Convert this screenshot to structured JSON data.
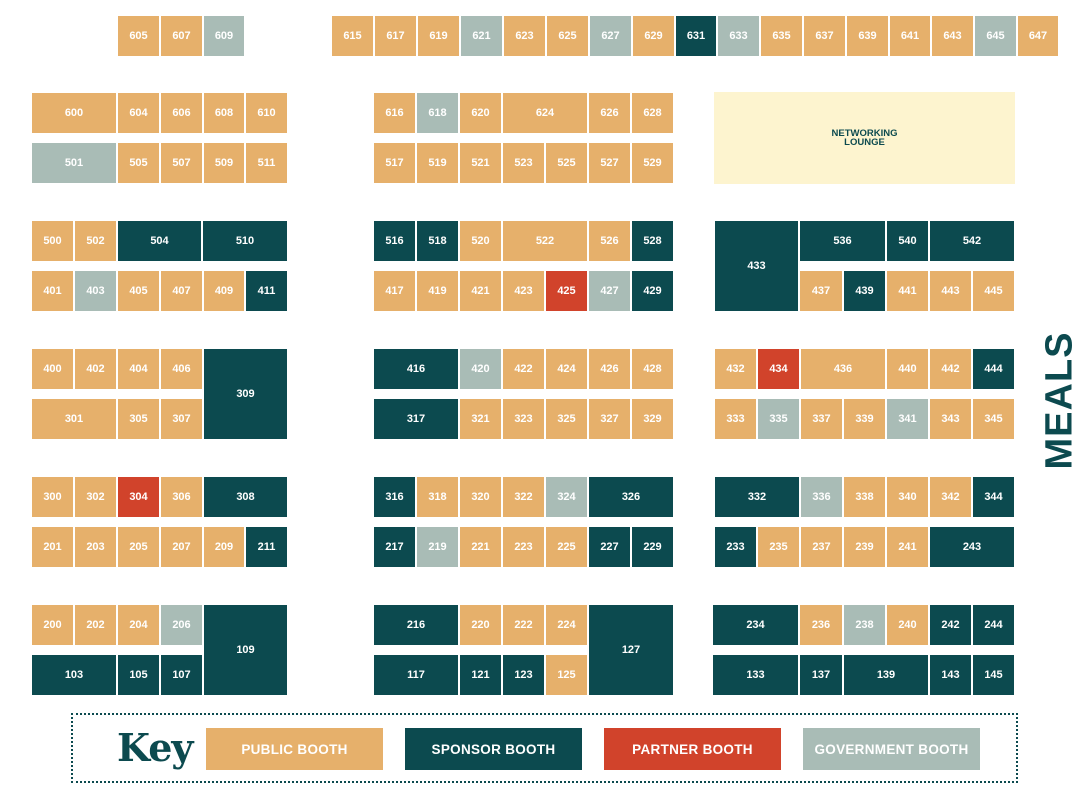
{
  "booth_types": {
    "public": {
      "label": "PUBLIC BOOTH",
      "color": "#e6b06b"
    },
    "sponsor": {
      "label": "SPONSOR BOOTH",
      "color": "#0c4a4f"
    },
    "partner": {
      "label": "PARTNER BOOTH",
      "color": "#d1432b"
    },
    "government": {
      "label": "GOVERNMENT BOOTH",
      "color": "#a9bcb6"
    }
  },
  "key_title": "Key",
  "lounge": {
    "line1": "NETWORKING",
    "line2": "LOUNGE"
  },
  "meals_label": "MEALS",
  "booths": {
    "605": "public",
    "607": "public",
    "609": "government",
    "615": "public",
    "617": "public",
    "619": "public",
    "621": "government",
    "623": "public",
    "625": "public",
    "627": "government",
    "629": "public",
    "631": "sponsor",
    "633": "government",
    "635": "public",
    "637": "public",
    "639": "public",
    "641": "public",
    "643": "public",
    "645": "government",
    "647": "public",
    "600": "public",
    "604": "public",
    "606": "public",
    "608": "public",
    "610": "public",
    "501": "government",
    "505": "public",
    "507": "public",
    "509": "public",
    "511": "public",
    "616": "public",
    "618": "government",
    "620": "public",
    "624": "public",
    "626": "public",
    "628": "public",
    "517": "public",
    "519": "public",
    "521": "public",
    "523": "public",
    "525": "public",
    "527": "public",
    "529": "public",
    "500": "public",
    "502": "public",
    "504": "sponsor",
    "510": "sponsor",
    "401": "public",
    "403": "government",
    "405": "public",
    "407": "public",
    "409": "public",
    "411": "sponsor",
    "516": "sponsor",
    "518": "sponsor",
    "520": "public",
    "522": "public",
    "526": "public",
    "528": "sponsor",
    "417": "public",
    "419": "public",
    "421": "public",
    "423": "public",
    "425": "partner",
    "427": "government",
    "429": "sponsor",
    "433": "sponsor",
    "536": "sponsor",
    "540": "sponsor",
    "542": "sponsor",
    "437": "public",
    "439": "sponsor",
    "441": "public",
    "443": "public",
    "445": "public",
    "400": "public",
    "402": "public",
    "404": "public",
    "406": "public",
    "309": "sponsor",
    "301": "public",
    "305": "public",
    "307": "public",
    "416": "sponsor",
    "420": "government",
    "422": "public",
    "424": "public",
    "426": "public",
    "428": "public",
    "317": "sponsor",
    "321": "public",
    "323": "public",
    "325": "public",
    "327": "public",
    "329": "public",
    "432": "public",
    "434": "partner",
    "436": "public",
    "440": "public",
    "442": "public",
    "444": "sponsor",
    "333": "public",
    "335": "government",
    "337": "public",
    "339": "public",
    "341": "government",
    "343": "public",
    "345": "public",
    "300": "public",
    "302": "public",
    "304": "partner",
    "306": "public",
    "308": "sponsor",
    "201": "public",
    "203": "public",
    "205": "public",
    "207": "public",
    "209": "public",
    "211": "sponsor",
    "316": "sponsor",
    "318": "public",
    "320": "public",
    "322": "public",
    "324": "government",
    "326": "sponsor",
    "217": "sponsor",
    "219": "government",
    "221": "public",
    "223": "public",
    "225": "public",
    "227": "sponsor",
    "229": "sponsor",
    "332": "sponsor",
    "336": "government",
    "338": "public",
    "340": "public",
    "342": "public",
    "344": "sponsor",
    "233": "sponsor",
    "235": "public",
    "237": "public",
    "239": "public",
    "241": "public",
    "243": "sponsor",
    "200": "public",
    "202": "public",
    "204": "public",
    "206": "government",
    "109": "sponsor",
    "103": "sponsor",
    "105": "sponsor",
    "107": "sponsor",
    "216": "sponsor",
    "220": "public",
    "222": "public",
    "224": "public",
    "127": "sponsor",
    "117": "sponsor",
    "121": "sponsor",
    "123": "sponsor",
    "125": "public",
    "234": "sponsor",
    "236": "public",
    "238": "government",
    "240": "public",
    "242": "sponsor",
    "244": "sponsor",
    "133": "sponsor",
    "137": "sponsor",
    "139": "sponsor",
    "143": "sponsor",
    "145": "sponsor"
  }
}
